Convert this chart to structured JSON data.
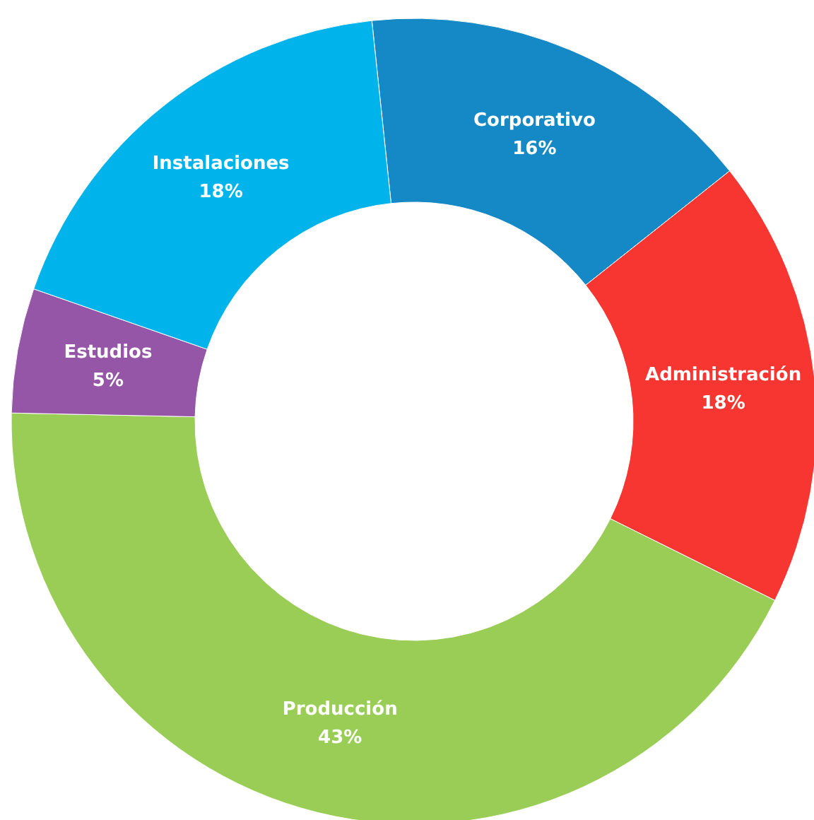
{
  "chart_data": {
    "type": "donut",
    "categories": [
      "Corporativo",
      "Administración",
      "Producción",
      "Estudios",
      "Instalaciones"
    ],
    "values": [
      16,
      18,
      43,
      5,
      18
    ],
    "value_labels": [
      "16%",
      "18%",
      "43%",
      "5%",
      "18%"
    ],
    "colors": [
      "#1589c6",
      "#f73531",
      "#9acd55",
      "#9556a7",
      "#00b4eb"
    ]
  }
}
